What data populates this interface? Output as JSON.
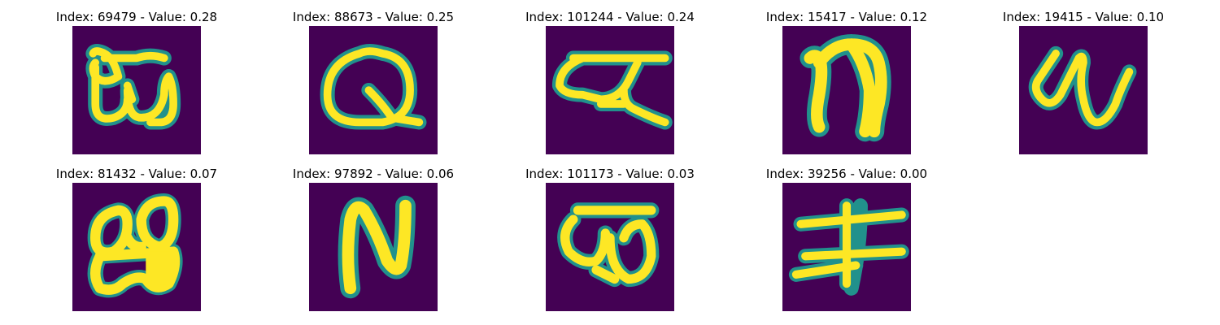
{
  "colors": {
    "background": "#440154",
    "foreground": "#fde725",
    "edge": "#21918c",
    "page": "#ffffff"
  },
  "panels": [
    {
      "title": "Index: 69479 - Value: 0.28"
    },
    {
      "title": "Index: 88673 - Value: 0.25"
    },
    {
      "title": "Index: 101244 - Value: 0.24"
    },
    {
      "title": "Index: 15417 - Value: 0.12"
    },
    {
      "title": "Index: 19415 - Value: 0.10"
    },
    {
      "title": "Index: 81432 - Value: 0.07"
    },
    {
      "title": "Index: 97892 - Value: 0.06"
    },
    {
      "title": "Index: 101173 - Value: 0.03"
    },
    {
      "title": "Index: 39256 - Value: 0.00"
    }
  ]
}
